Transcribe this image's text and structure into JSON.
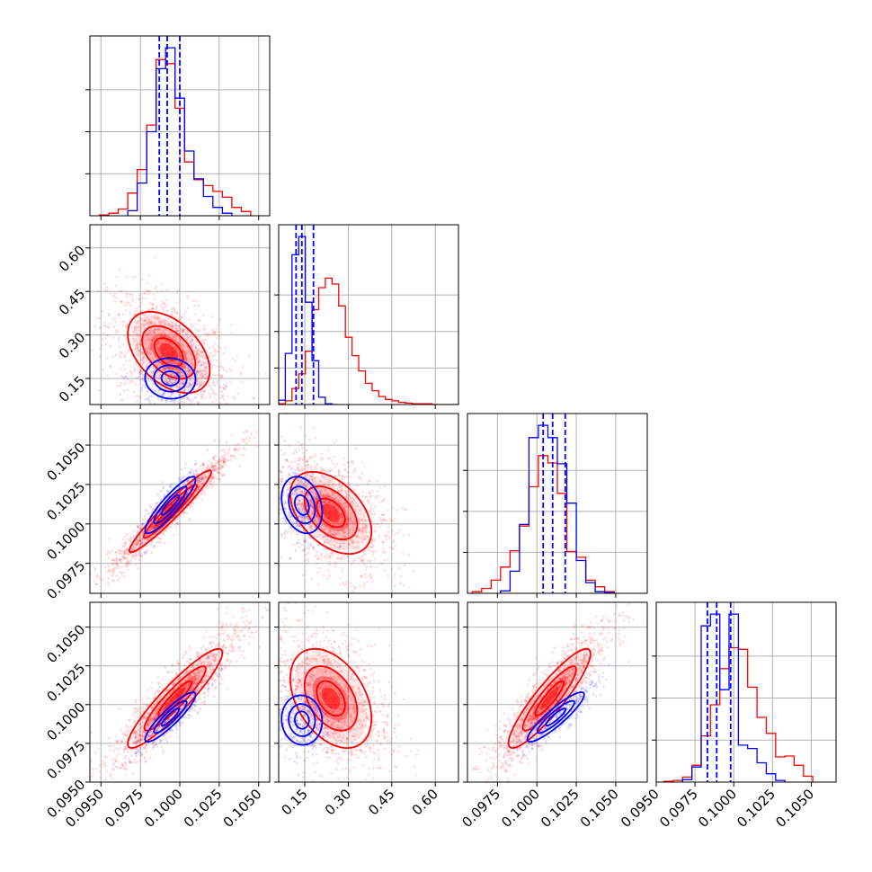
{
  "chart_data": {
    "type": "corner",
    "parameters": [
      {
        "range": [
          0.0943,
          0.1057
        ],
        "ticks": [
          0.095,
          0.0975,
          0.1,
          0.1025,
          0.105
        ],
        "tick_labels": [
          "0.0950",
          "0.0975",
          "0.1000",
          "0.1025",
          "0.1050"
        ]
      },
      {
        "range": [
          0.06,
          0.68
        ],
        "ticks": [
          0.15,
          0.3,
          0.45,
          0.6
        ],
        "tick_labels": [
          "0.15",
          "0.30",
          "0.45",
          "0.60"
        ]
      },
      {
        "range": [
          0.0956,
          0.107
        ],
        "ticks": [
          0.0975,
          0.1,
          0.1025,
          0.105
        ],
        "tick_labels": [
          "0.0975",
          "0.1000",
          "0.1025",
          "0.1050"
        ]
      },
      {
        "range": [
          0.095,
          0.1066
        ],
        "ticks": [
          0.095,
          0.0975,
          0.1,
          0.1025,
          0.105
        ],
        "tick_labels": [
          "0.0950",
          "0.0975",
          "0.1000",
          "0.1025",
          "0.1050"
        ]
      }
    ],
    "series": [
      {
        "color": "#ff0000",
        "histograms": [
          {
            "edges": [
              0.0949,
              0.0955,
              0.0961,
              0.0967,
              0.0973,
              0.0979,
              0.0985,
              0.0991,
              0.0997,
              0.1003,
              0.1009,
              0.1015,
              0.1021,
              0.1027,
              0.1033,
              0.1039,
              0.1045
            ],
            "counts": [
              1,
              3,
              8,
              27,
              55,
              108,
              186,
              181,
              128,
              64,
              43,
              36,
              29,
              22,
              10,
              5
            ]
          },
          {
            "edges": [
              0.06,
              0.083,
              0.106,
              0.129,
              0.152,
              0.175,
              0.198,
              0.221,
              0.244,
              0.267,
              0.29,
              0.313,
              0.336,
              0.359,
              0.382,
              0.405,
              0.428,
              0.451,
              0.474,
              0.497,
              0.52,
              0.543,
              0.566,
              0.589,
              0.612,
              0.635,
              0.658,
              0.681
            ],
            "counts": [
              1,
              5,
              22,
              42,
              73,
              130,
              160,
              173,
              165,
              135,
              92,
              67,
              46,
              29,
              19,
              11,
              7,
              5,
              3,
              2,
              1,
              1,
              1,
              0,
              0,
              0,
              0
            ]
          },
          {
            "edges": [
              0.0959,
              0.0965,
              0.0971,
              0.0977,
              0.0983,
              0.0989,
              0.0995,
              0.1001,
              0.1007,
              0.1013,
              0.1019,
              0.1025,
              0.1031,
              0.1037,
              0.1043,
              0.1049
            ],
            "counts": [
              2,
              6,
              16,
              32,
              52,
              82,
              130,
              168,
              159,
              122,
              51,
              44,
              16,
              8,
              2
            ]
          },
          {
            "edges": [
              0.0955,
              0.0961,
              0.0967,
              0.0973,
              0.0979,
              0.0985,
              0.0991,
              0.0997,
              0.1003,
              0.1009,
              0.1015,
              0.1021,
              0.1027,
              0.1033,
              0.1039,
              0.1045,
              0.1051
            ],
            "counts": [
              1,
              2,
              6,
              20,
              55,
              92,
              135,
              160,
              158,
              113,
              77,
              58,
              30,
              31,
              20,
              7
            ]
          }
        ],
        "pairs": {
          "1-0": {
            "mean": [
              0.0993,
              0.24
            ],
            "sd": [
              0.0013,
              0.07
            ],
            "corr": -0.45
          },
          "2-0": {
            "mean": [
              0.0994,
              0.1008
            ],
            "sd": [
              0.0013,
              0.0013
            ],
            "corr": 0.96
          },
          "2-1": {
            "mean": [
              0.24,
              0.1007
            ],
            "sd": [
              0.07,
              0.0013
            ],
            "corr": -0.45
          },
          "3-0": {
            "mean": [
              0.0997,
              0.1004
            ],
            "sd": [
              0.0015,
              0.0016
            ],
            "corr": 0.92
          },
          "3-1": {
            "mean": [
              0.24,
              0.1004
            ],
            "sd": [
              0.07,
              0.0016
            ],
            "corr": -0.4
          },
          "3-2": {
            "mean": [
              0.1008,
              0.1004
            ],
            "sd": [
              0.0013,
              0.0016
            ],
            "corr": 0.9
          }
        }
      },
      {
        "color": "#0000ff",
        "histograms": [
          {
            "edges": [
              0.0967,
              0.0973,
              0.0979,
              0.0985,
              0.0991,
              0.0997,
              0.1003,
              0.1009,
              0.1015,
              0.1021,
              0.1027,
              0.1033
            ],
            "counts": [
              6,
              39,
              100,
              175,
              200,
              140,
              77,
              44,
              23,
              10,
              3
            ]
          },
          {
            "edges": [
              0.06,
              0.083,
              0.106,
              0.129,
              0.152,
              0.175,
              0.198,
              0.221,
              0.244,
              0.267
            ],
            "counts": [
              6,
              70,
              205,
              230,
              140,
              60,
              10,
              1,
              0
            ]
          },
          {
            "edges": [
              0.0977,
              0.0983,
              0.0989,
              0.0995,
              0.1001,
              0.1007,
              0.1013,
              0.1019,
              0.1025,
              0.1031,
              0.1037,
              0.1043,
              0.1049
            ],
            "counts": [
              3,
              27,
              84,
              190,
              205,
              190,
              158,
              110,
              40,
              13,
              2,
              1
            ]
          },
          {
            "edges": [
              0.0967,
              0.0973,
              0.0979,
              0.0985,
              0.0991,
              0.0997,
              0.1003,
              0.1009,
              0.1015,
              0.1021,
              0.1027,
              0.1033
            ],
            "counts": [
              3,
              18,
              186,
              200,
              110,
              200,
              44,
              40,
              23,
              10,
              2
            ]
          }
        ],
        "quantiles": [
          [
            0.0987,
            0.0992,
            0.1
          ],
          [
            0.12,
            0.14,
            0.18
          ],
          [
            0.1004,
            0.101,
            0.1018
          ],
          [
            0.0983,
            0.0989,
            0.0998
          ]
        ],
        "pairs": {
          "1-0": {
            "mean": [
              0.0994,
              0.15
            ],
            "sd": [
              0.0008,
              0.035
            ],
            "corr": -0.05
          },
          "2-0": {
            "mean": [
              0.0994,
              0.1012
            ],
            "sd": [
              0.0008,
              0.0009
            ],
            "corr": 0.9
          },
          "2-1": {
            "mean": [
              0.14,
              0.1012
            ],
            "sd": [
              0.035,
              0.0009
            ],
            "corr": -0.25
          },
          "3-0": {
            "mean": [
              0.0994,
              0.0992
            ],
            "sd": [
              0.0008,
              0.0008
            ],
            "corr": 0.9
          },
          "3-1": {
            "mean": [
              0.14,
              0.099
            ],
            "sd": [
              0.035,
              0.0008
            ],
            "corr": -0.05
          },
          "3-2": {
            "mean": [
              0.1012,
              0.0992
            ],
            "sd": [
              0.0009,
              0.0008
            ],
            "corr": 0.9
          }
        }
      }
    ],
    "grid": true
  }
}
